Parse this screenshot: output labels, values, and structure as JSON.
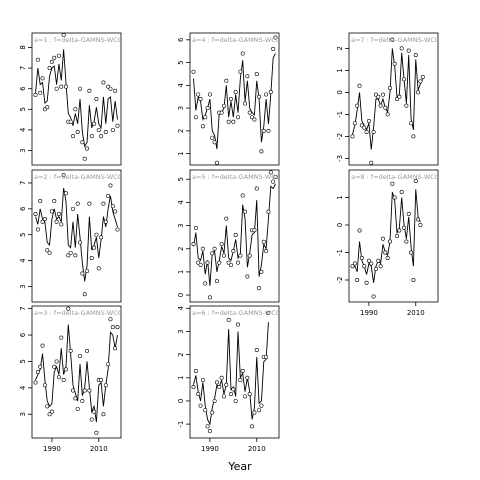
{
  "chart_data": {
    "type": "line",
    "xlabel": "Year",
    "x": [
      1983,
      1984,
      1985,
      1986,
      1987,
      1988,
      1989,
      1990,
      1991,
      1992,
      1993,
      1994,
      1995,
      1996,
      1997,
      1998,
      1999,
      2000,
      2001,
      2002,
      2003,
      2004,
      2005,
      2006,
      2007,
      2008,
      2009,
      2010,
      2011,
      2012,
      2013,
      2014,
      2015,
      2016,
      2017,
      2018
    ],
    "xticks": [
      1990,
      2010
    ],
    "panels": [
      {
        "id": "a1",
        "annotation": "a=1 : f=delta-GAMNS-WCC",
        "ylim": [
          2.3,
          8.7
        ],
        "yticks": [
          3,
          4,
          5,
          6,
          7,
          8
        ],
        "show_x_axis": false,
        "points": [
          5.7,
          7.4,
          5.8,
          6.5,
          5.0,
          5.1,
          7.0,
          7.3,
          7.5,
          6.0,
          7.6,
          6.1,
          8.6,
          6.1,
          4.4,
          4.4,
          3.7,
          5.0,
          3.9,
          6.0,
          3.4,
          2.6,
          3.1,
          5.9,
          3.7,
          4.3,
          5.5,
          4.0,
          3.7,
          6.3,
          3.9,
          6.1,
          6.0,
          4.0,
          5.9,
          4.2
        ],
        "fit": [
          5.8,
          7.0,
          6.2,
          6.3,
          5.3,
          5.4,
          6.6,
          7.0,
          7.1,
          6.2,
          7.2,
          6.4,
          7.9,
          6.3,
          4.8,
          4.6,
          4.2,
          4.8,
          4.3,
          5.5,
          3.9,
          3.2,
          3.4,
          5.2,
          4.1,
          4.4,
          5.1,
          4.3,
          4.1,
          5.6,
          4.3,
          5.5,
          5.6,
          4.4,
          5.4,
          4.5
        ]
      },
      {
        "id": "a2",
        "annotation": "a=2 : f=delta-GAMNS-WCC",
        "ylim": [
          2.4,
          7.5
        ],
        "yticks": [
          3,
          4,
          5,
          6,
          7
        ],
        "show_x_axis": false,
        "points": [
          5.8,
          5.2,
          6.3,
          5.5,
          5.6,
          4.4,
          4.3,
          5.9,
          6.3,
          5.5,
          5.8,
          5.4,
          7.3,
          6.6,
          4.2,
          4.3,
          6.0,
          4.2,
          6.2,
          4.7,
          3.5,
          2.7,
          3.6,
          6.2,
          4.1,
          4.5,
          5.0,
          3.7,
          4.9,
          6.2,
          5.5,
          6.5,
          6.9,
          6.1,
          5.9,
          5.2
        ],
        "fit": [
          5.7,
          5.4,
          6.0,
          5.6,
          5.5,
          4.7,
          4.6,
          5.6,
          6.0,
          5.6,
          5.7,
          5.5,
          6.8,
          6.3,
          4.6,
          4.5,
          5.5,
          4.5,
          5.8,
          4.9,
          3.9,
          3.2,
          3.8,
          5.7,
          4.4,
          4.6,
          4.9,
          4.1,
          4.8,
          5.7,
          5.3,
          6.0,
          6.5,
          5.9,
          5.6,
          5.3
        ]
      },
      {
        "id": "a3",
        "annotation": "a=3 : f=delta-GAMNS-WCC",
        "ylim": [
          2.1,
          7.1
        ],
        "yticks": [
          3,
          4,
          5,
          6,
          7
        ],
        "show_x_axis": true,
        "points": [
          4.2,
          4.6,
          4.8,
          5.6,
          4.1,
          3.3,
          3.0,
          3.1,
          4.8,
          5.0,
          4.4,
          5.9,
          4.3,
          4.7,
          7.0,
          5.4,
          3.9,
          3.6,
          3.2,
          5.2,
          3.5,
          3.9,
          5.4,
          3.9,
          2.8,
          3.1,
          2.3,
          4.3,
          4.3,
          3.0,
          4.1,
          4.9,
          6.6,
          6.3,
          5.5,
          6.3
        ],
        "fit": [
          4.3,
          4.5,
          4.7,
          5.3,
          4.3,
          3.5,
          3.3,
          3.4,
          4.6,
          4.8,
          4.5,
          5.5,
          4.5,
          4.8,
          6.4,
          5.3,
          4.1,
          3.8,
          3.5,
          4.9,
          3.7,
          4.0,
          5.0,
          4.0,
          3.1,
          3.3,
          2.7,
          4.1,
          4.2,
          3.3,
          4.1,
          4.7,
          6.1,
          6.0,
          5.5,
          6.0
        ]
      },
      {
        "id": "a4",
        "annotation": "a=4 : f=delta-GAMNS-WCC",
        "ylim": [
          0.5,
          6.3
        ],
        "yticks": [
          1,
          2,
          3,
          4,
          5,
          6
        ],
        "show_x_axis": false,
        "points": [
          4.6,
          2.6,
          3.6,
          3.4,
          2.2,
          2.6,
          3.0,
          3.6,
          1.7,
          1.5,
          0.6,
          2.8,
          2.8,
          3.1,
          4.2,
          2.4,
          3.4,
          2.4,
          3.7,
          2.6,
          4.6,
          5.4,
          3.2,
          4.4,
          2.8,
          2.6,
          2.5,
          4.5,
          3.5,
          1.1,
          2.0,
          3.6,
          2.0,
          3.7,
          5.6,
          6.1
        ],
        "fit": [
          4.3,
          2.9,
          3.5,
          3.3,
          2.5,
          2.7,
          3.0,
          3.4,
          2.0,
          1.8,
          1.2,
          2.8,
          2.8,
          3.0,
          4.0,
          2.6,
          3.3,
          2.6,
          3.6,
          2.8,
          4.3,
          5.1,
          3.3,
          4.2,
          3.0,
          2.8,
          2.7,
          4.2,
          3.4,
          1.5,
          2.2,
          3.4,
          2.3,
          3.6,
          5.2,
          5.4
        ]
      },
      {
        "id": "a5",
        "annotation": "a=5 : f=delta-GAMNS-WCC",
        "ylim": [
          -0.3,
          5.4
        ],
        "yticks": [
          0,
          1,
          2,
          3,
          4,
          5
        ],
        "show_x_axis": false,
        "points": [
          2.2,
          2.9,
          1.4,
          1.3,
          2.0,
          0.5,
          1.4,
          -0.1,
          1.8,
          2.0,
          0.6,
          1.4,
          2.2,
          1.7,
          3.3,
          1.4,
          1.3,
          1.9,
          2.6,
          1.4,
          1.7,
          4.3,
          3.6,
          0.8,
          1.7,
          2.8,
          2.8,
          4.6,
          0.3,
          1.0,
          2.3,
          1.9,
          3.6,
          5.3,
          4.9,
          5.1
        ],
        "fit": [
          2.1,
          2.7,
          1.6,
          1.5,
          1.9,
          0.9,
          1.5,
          0.4,
          1.8,
          1.9,
          1.0,
          1.5,
          2.1,
          1.8,
          3.0,
          1.6,
          1.5,
          1.9,
          2.4,
          1.6,
          1.8,
          3.9,
          3.3,
          1.2,
          1.8,
          2.6,
          2.7,
          4.1,
          0.8,
          1.3,
          2.2,
          2.0,
          3.3,
          4.7,
          4.6,
          4.8
        ]
      },
      {
        "id": "a6",
        "annotation": "a=6 : f=delta-GAMNS-WCC",
        "ylim": [
          -1.6,
          4.1
        ],
        "yticks": [
          -1,
          0,
          1,
          2,
          3,
          4
        ],
        "show_x_axis": true,
        "points": [
          0.6,
          1.3,
          0.3,
          -0.2,
          0.9,
          -0.4,
          -1.1,
          -1.3,
          -0.5,
          0.0,
          0.8,
          0.6,
          1.0,
          0.2,
          0.7,
          3.5,
          0.3,
          0.5,
          0.0,
          3.3,
          0.9,
          1.3,
          0.2,
          1.0,
          0.3,
          -1.1,
          -0.5,
          2.2,
          -0.4,
          -0.2,
          1.9,
          1.9,
          3.8
        ],
        "fit": [
          0.7,
          1.1,
          0.4,
          0.0,
          0.8,
          -0.2,
          -0.8,
          -1.0,
          -0.3,
          0.1,
          0.7,
          0.6,
          0.9,
          0.3,
          0.7,
          3.1,
          0.5,
          0.6,
          0.2,
          3.0,
          1.0,
          1.2,
          0.4,
          1.0,
          0.4,
          -0.8,
          -0.3,
          1.9,
          -0.1,
          0.0,
          1.7,
          1.8,
          3.4
        ]
      },
      {
        "id": "a7",
        "annotation": "a=7 : f=delta-GAMNS-WCC",
        "ylim": [
          -3.3,
          2.7
        ],
        "yticks": [
          -3,
          -2,
          -1,
          0,
          1,
          2
        ],
        "show_x_axis": false,
        "points": [
          -2.0,
          -1.4,
          -0.6,
          0.3,
          -1.5,
          -1.6,
          -1.8,
          -1.3,
          -3.2,
          -1.8,
          -0.1,
          -0.2,
          -0.6,
          -0.1,
          -0.7,
          -1.0,
          0.2,
          2.4,
          1.3,
          -0.3,
          -0.2,
          2.0,
          0.6,
          -0.6,
          1.9,
          -1.4,
          -2.0,
          1.7,
          0.0,
          0.5,
          0.7
        ],
        "fit": [
          -1.9,
          -1.5,
          -0.8,
          0.0,
          -1.3,
          -1.5,
          -1.7,
          -1.4,
          -2.6,
          -1.6,
          -0.3,
          -0.3,
          -0.6,
          -0.3,
          -0.7,
          -0.9,
          0.0,
          2.0,
          1.2,
          -0.2,
          -0.1,
          1.8,
          0.6,
          -0.5,
          1.7,
          -1.2,
          -1.7,
          1.5,
          0.1,
          0.4,
          0.6
        ]
      },
      {
        "id": "a8",
        "annotation": "a=8 : f=delta-GAMNS-WCC",
        "ylim": [
          -2.8,
          2.0
        ],
        "yticks": [
          -2,
          -1,
          0,
          1
        ],
        "show_x_axis": true,
        "points": [
          -1.5,
          -1.4,
          -2.0,
          -0.2,
          -1.2,
          -1.5,
          -2.1,
          -1.3,
          -1.4,
          -2.6,
          -1.6,
          -1.3,
          -1.5,
          -0.5,
          -1.0,
          -1.2,
          -0.6,
          1.5,
          1.0,
          -0.4,
          -0.2,
          1.2,
          -0.1,
          -0.6,
          0.4,
          -1.0,
          -2.0,
          1.6,
          0.2,
          0.0
        ],
        "fit": [
          -1.5,
          -1.5,
          -1.7,
          -0.6,
          -1.3,
          -1.5,
          -1.8,
          -1.4,
          -1.5,
          -2.1,
          -1.5,
          -1.3,
          -1.4,
          -0.7,
          -1.0,
          -1.1,
          -0.6,
          1.2,
          0.9,
          -0.3,
          -0.1,
          1.0,
          0.0,
          -0.5,
          0.3,
          -0.8,
          -1.5,
          1.3,
          0.3,
          0.1
        ]
      }
    ]
  }
}
